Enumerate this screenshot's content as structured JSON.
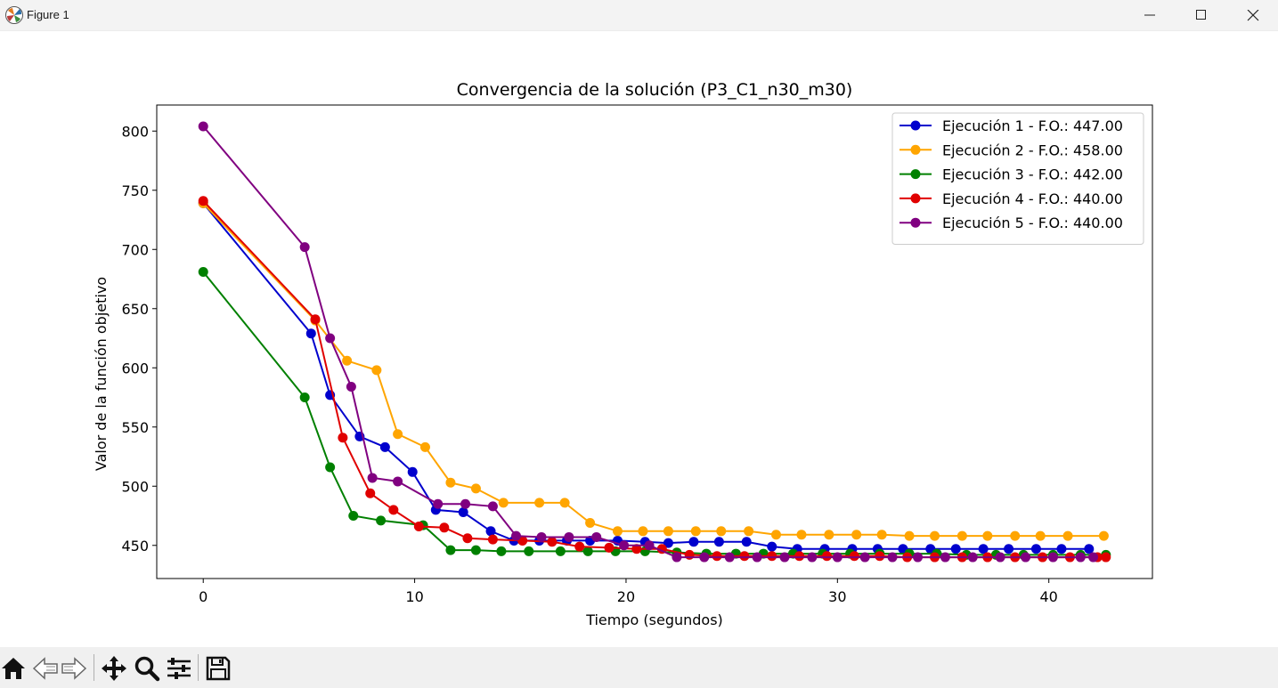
{
  "window": {
    "title": "Figure 1"
  },
  "toolbar": {
    "tools": [
      "home-icon",
      "back-arrow-icon",
      "forward-arrow-icon",
      "pan-icon",
      "zoom-icon",
      "configure-subplots-icon",
      "save-icon"
    ]
  },
  "chart_data": {
    "type": "line",
    "title": "Convergencia de la solución (P3_C1_n30_m30)",
    "xlabel": "Tiempo (segundos)",
    "ylabel": "Valor de la función objetivo",
    "xlim": [
      -2.2,
      44.9
    ],
    "ylim": [
      422,
      822
    ],
    "xticks": [
      0,
      10,
      20,
      30,
      40
    ],
    "yticks": [
      450,
      500,
      550,
      600,
      650,
      700,
      750,
      800
    ],
    "grid": false,
    "legend_position": "top-right",
    "series": [
      {
        "name": "Ejecución 1 - F.O.: 447.00",
        "color": "#0000cd",
        "x": [
          0,
          5.1,
          6.0,
          7.4,
          8.6,
          9.9,
          11.0,
          12.3,
          13.6,
          14.7,
          15.9,
          17.2,
          18.3,
          19.6,
          20.9,
          22.0,
          23.2,
          24.4,
          25.7,
          26.9,
          28.1,
          29.4,
          30.7,
          31.9,
          33.1,
          34.4,
          35.6,
          36.9,
          38.1,
          39.4,
          40.6,
          41.9
        ],
        "y": [
          739,
          629,
          577,
          542,
          533,
          512,
          480,
          478,
          462,
          454,
          454,
          454,
          454,
          454,
          453,
          452,
          453,
          453,
          453,
          449,
          447,
          447,
          447,
          447,
          447,
          447,
          447,
          447,
          447,
          447,
          447,
          447
        ]
      },
      {
        "name": "Ejecución 2 - F.O.: 458.00",
        "color": "#ffa500",
        "x": [
          0,
          5.3,
          6.8,
          8.2,
          9.2,
          10.5,
          11.7,
          12.9,
          14.2,
          15.9,
          17.1,
          18.3,
          19.6,
          20.8,
          22.0,
          23.3,
          24.5,
          25.8,
          27.1,
          28.3,
          29.6,
          30.9,
          32.1,
          33.4,
          34.6,
          35.9,
          37.1,
          38.4,
          39.6,
          40.9,
          42.6
        ],
        "y": [
          739,
          640,
          606,
          598,
          544,
          533,
          503,
          498,
          486,
          486,
          486,
          469,
          462,
          462,
          462,
          462,
          462,
          462,
          459,
          459,
          459,
          459,
          459,
          458,
          458,
          458,
          458,
          458,
          458,
          458,
          458
        ]
      },
      {
        "name": "Ejecución 3 - F.O.: 442.00",
        "color": "#008000",
        "x": [
          0,
          4.8,
          6.0,
          7.1,
          8.4,
          10.4,
          11.7,
          12.9,
          14.1,
          15.4,
          16.9,
          18.2,
          19.5,
          20.9,
          22.4,
          23.8,
          25.2,
          26.5,
          27.9,
          29.3,
          30.6,
          32.0,
          33.4,
          34.7,
          36.1,
          37.5,
          38.8,
          40.2,
          41.5,
          42.7
        ],
        "y": [
          681,
          575,
          516,
          475,
          471,
          467,
          446,
          446,
          445,
          445,
          445,
          445,
          445,
          445,
          444,
          443,
          443,
          443,
          443,
          443,
          443,
          443,
          443,
          443,
          442,
          442,
          442,
          442,
          442,
          442
        ]
      },
      {
        "name": "Ejecución 4 - F.O.: 440.00",
        "color": "#e00000",
        "x": [
          0,
          5.3,
          6.6,
          7.9,
          9.0,
          10.2,
          11.4,
          12.5,
          13.7,
          15.1,
          16.5,
          17.8,
          19.2,
          20.5,
          21.7,
          23.0,
          24.3,
          25.6,
          26.9,
          28.2,
          29.5,
          30.8,
          32.0,
          33.3,
          34.6,
          35.9,
          37.1,
          38.4,
          39.7,
          41.0,
          42.3,
          42.7
        ],
        "y": [
          741,
          641,
          541,
          494,
          480,
          466,
          465,
          456,
          455,
          454,
          453,
          449,
          448,
          447,
          447,
          442,
          441,
          441,
          441,
          441,
          441,
          441,
          441,
          440,
          440,
          440,
          440,
          440,
          440,
          440,
          440,
          440
        ]
      },
      {
        "name": "Ejecución 5 - F.O.: 440.00",
        "color": "#800080",
        "x": [
          0,
          4.8,
          6.0,
          7.0,
          8.0,
          9.2,
          11.1,
          12.4,
          13.7,
          14.8,
          16.0,
          17.3,
          18.6,
          19.9,
          21.1,
          22.4,
          23.7,
          24.9,
          26.2,
          27.5,
          28.8,
          30.0,
          31.3,
          32.6,
          33.8,
          35.1,
          36.4,
          37.7,
          38.9,
          40.2,
          41.5,
          42.1
        ],
        "y": [
          804,
          702,
          625,
          584,
          507,
          504,
          485,
          485,
          483,
          458,
          457,
          457,
          457,
          450,
          450,
          440,
          440,
          440,
          440,
          440,
          440,
          440,
          440,
          440,
          440,
          440,
          440,
          440,
          440,
          440,
          440,
          440
        ]
      }
    ]
  }
}
